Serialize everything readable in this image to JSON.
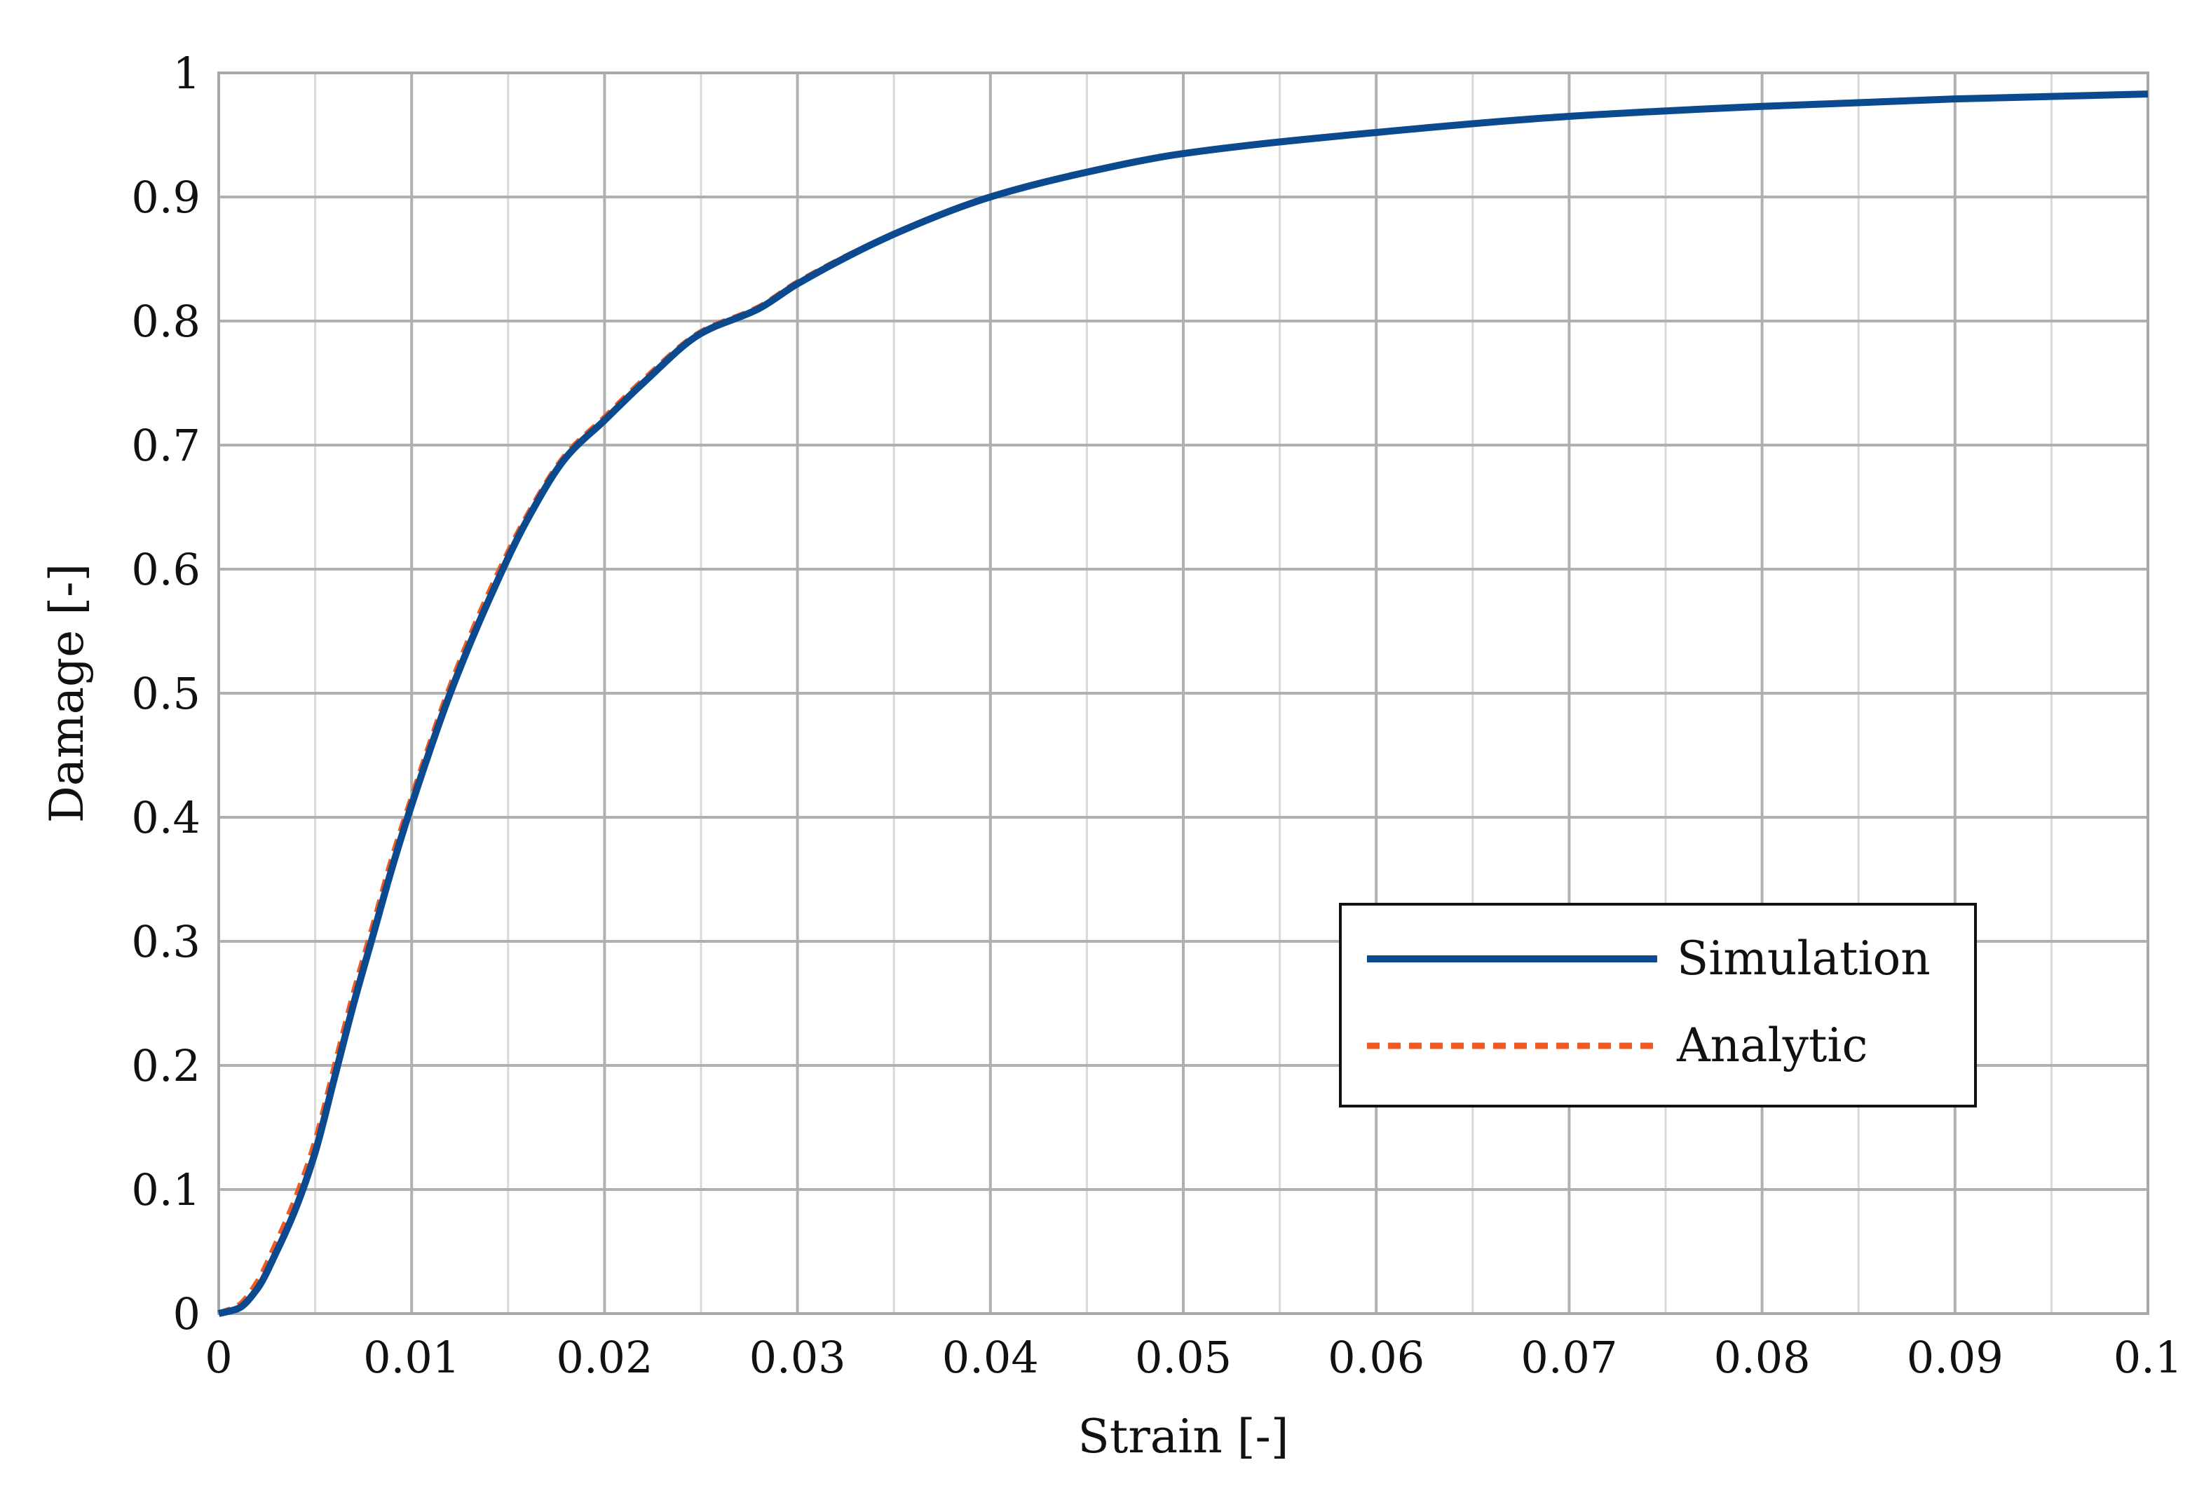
{
  "chart_data": {
    "type": "line",
    "title": "",
    "xlabel": "Strain [-]",
    "ylabel": "Damage [-]",
    "xlim": [
      0,
      0.1
    ],
    "ylim": [
      0,
      1
    ],
    "grid": true,
    "minor_grid_x": true,
    "legend_position": "center-right",
    "x_ticks": [
      "0",
      "0.01",
      "0.02",
      "0.03",
      "0.04",
      "0.05",
      "0.06",
      "0.07",
      "0.08",
      "0.09",
      "0.1"
    ],
    "y_ticks": [
      "0",
      "0.1",
      "0.2",
      "0.3",
      "0.4",
      "0.5",
      "0.6",
      "0.7",
      "0.8",
      "0.9",
      "1"
    ],
    "series": [
      {
        "name": "Simulation",
        "color": "#0b4a8f",
        "style": "solid",
        "x": [
          0,
          0.001,
          0.002,
          0.003,
          0.004,
          0.005,
          0.006,
          0.007,
          0.008,
          0.009,
          0.01,
          0.012,
          0.014,
          0.016,
          0.018,
          0.02,
          0.022,
          0.025,
          0.028,
          0.03,
          0.035,
          0.04,
          0.045,
          0.05,
          0.06,
          0.07,
          0.08,
          0.09,
          0.1
        ],
        "y": [
          0,
          0.004,
          0.02,
          0.05,
          0.085,
          0.13,
          0.19,
          0.25,
          0.305,
          0.36,
          0.41,
          0.5,
          0.575,
          0.64,
          0.69,
          0.72,
          0.75,
          0.79,
          0.81,
          0.83,
          0.87,
          0.9,
          0.92,
          0.935,
          0.952,
          0.965,
          0.973,
          0.979,
          0.983
        ]
      },
      {
        "name": "Analytic",
        "color": "#f15a22",
        "style": "dashed",
        "x": [
          0,
          0.001,
          0.002,
          0.003,
          0.004,
          0.005,
          0.006,
          0.007,
          0.008,
          0.009,
          0.01,
          0.012,
          0.014,
          0.016,
          0.018,
          0.02,
          0.022,
          0.025,
          0.028,
          0.03,
          0.035,
          0.04,
          0.045,
          0.05,
          0.06,
          0.07,
          0.08,
          0.09,
          0.1
        ],
        "y": [
          0,
          0.006,
          0.025,
          0.057,
          0.093,
          0.138,
          0.198,
          0.258,
          0.312,
          0.367,
          0.415,
          0.505,
          0.58,
          0.643,
          0.692,
          0.722,
          0.752,
          0.791,
          0.811,
          0.831,
          0.87,
          0.9,
          0.92,
          0.935,
          0.952,
          0.965,
          0.973,
          0.979,
          0.983
        ]
      }
    ]
  }
}
